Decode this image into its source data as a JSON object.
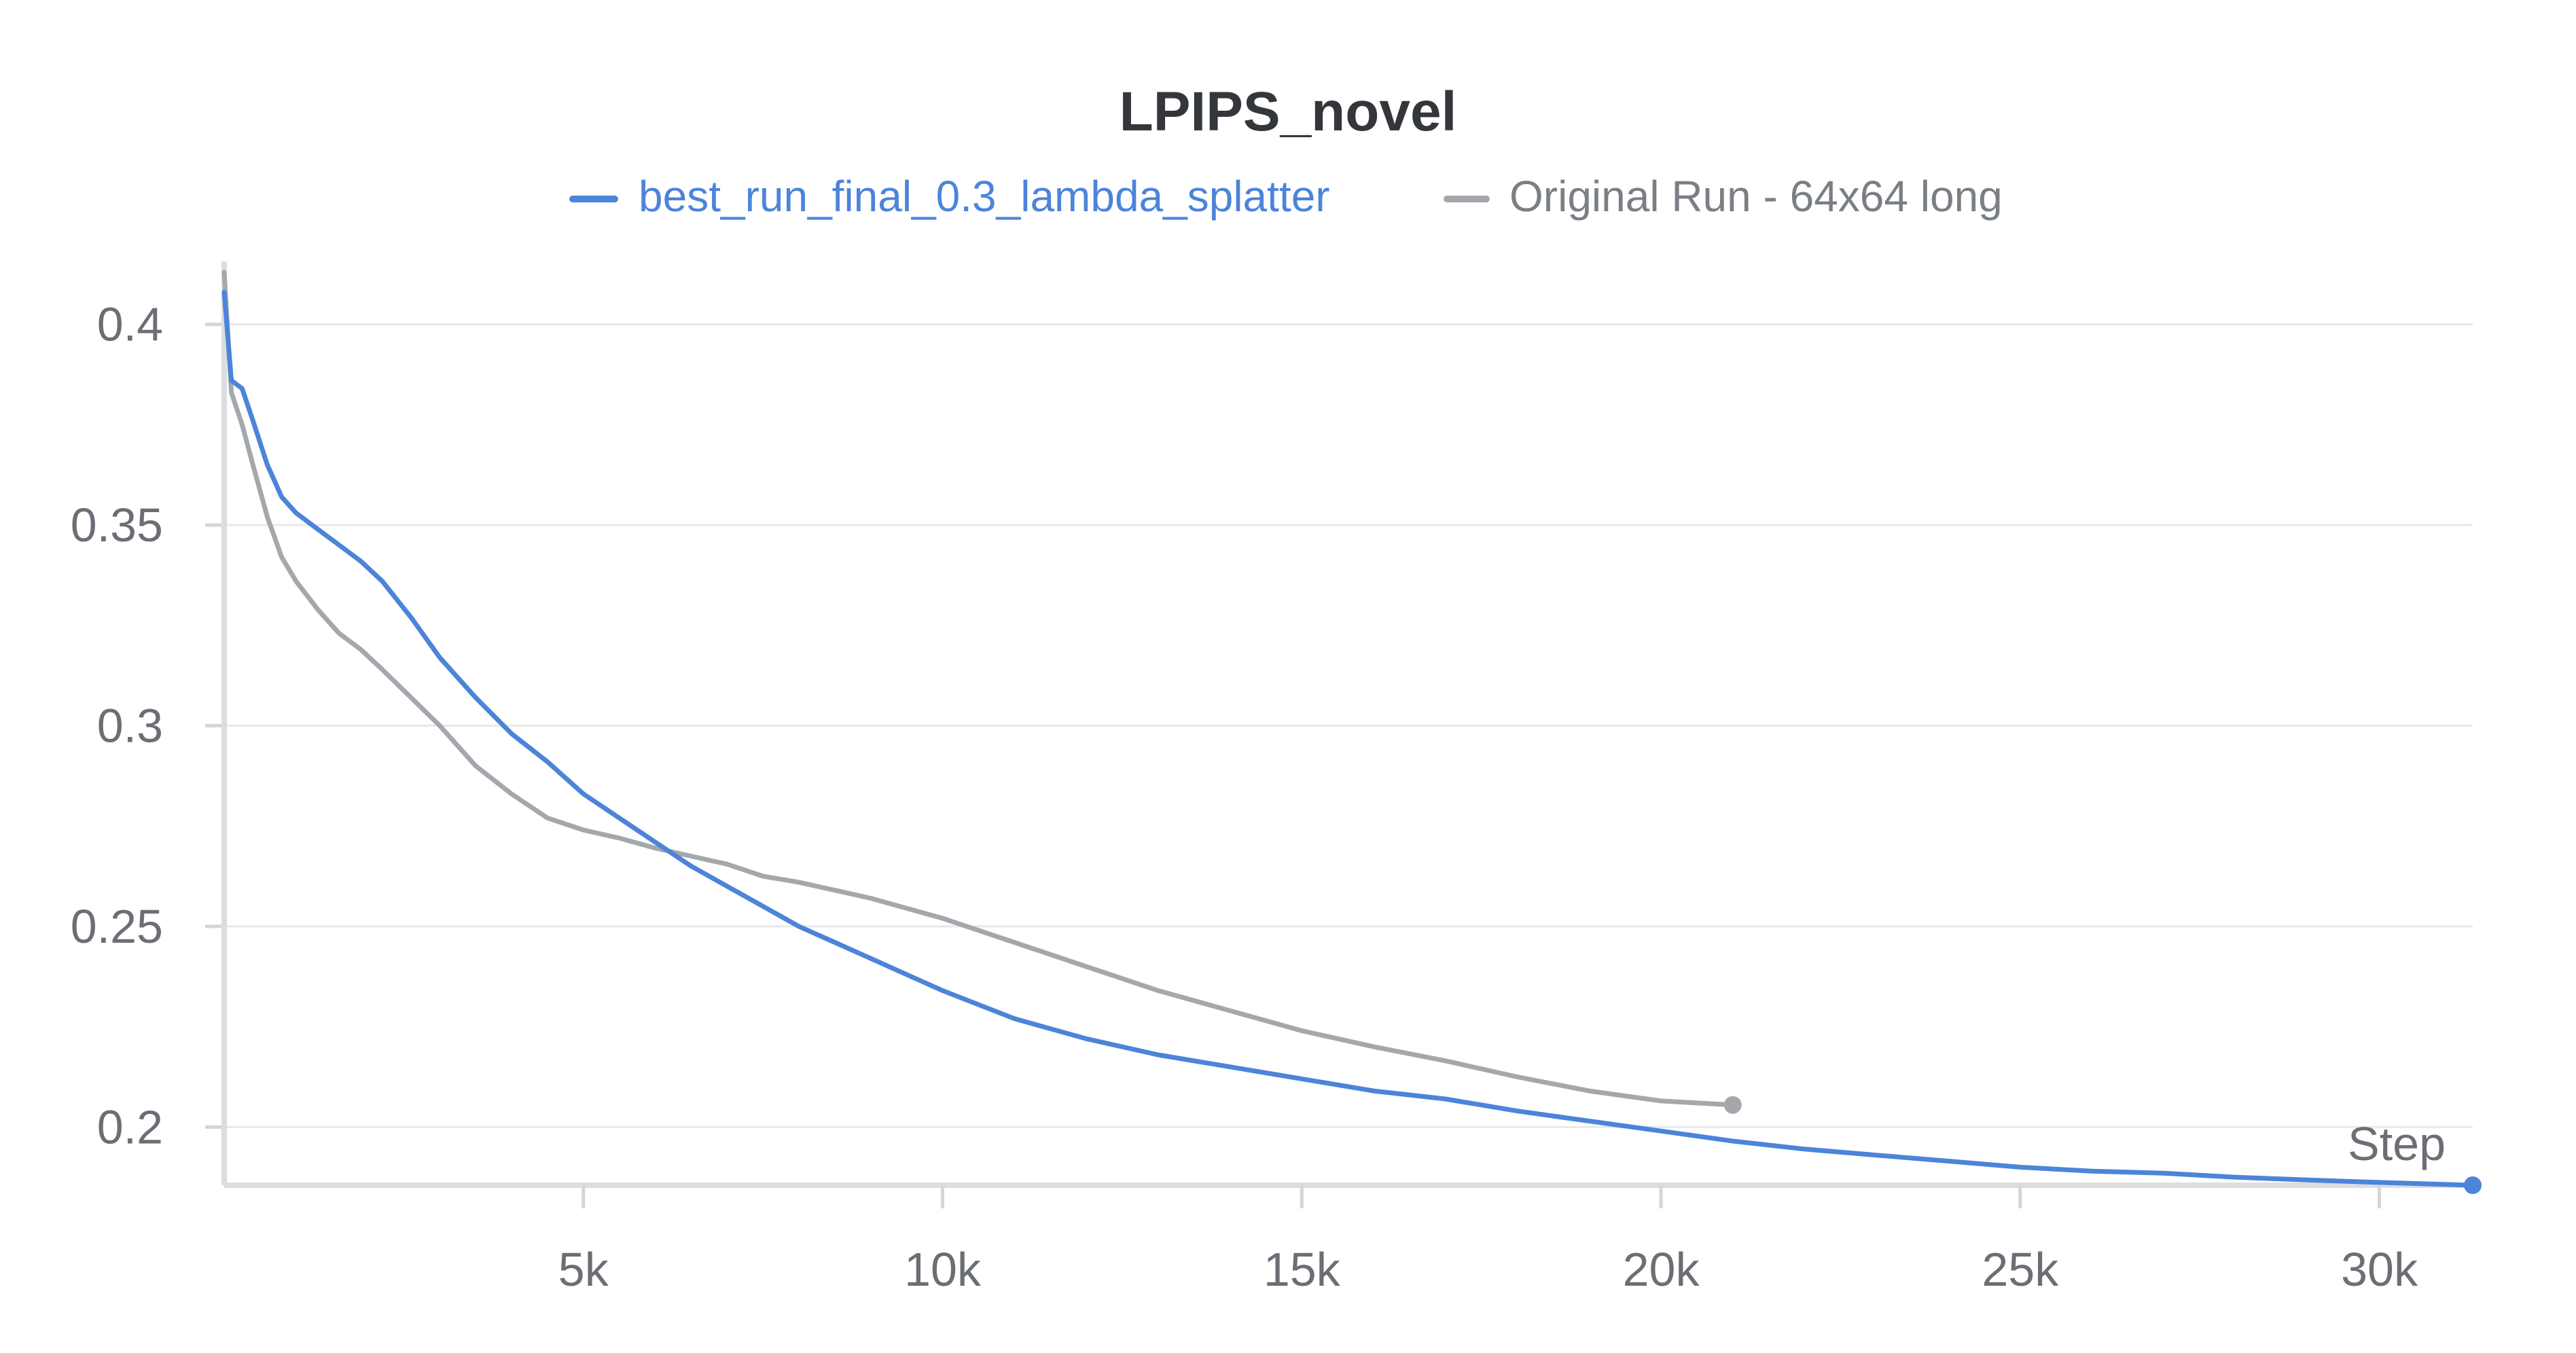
{
  "chart_data": {
    "type": "line",
    "title": "LPIPS_novel",
    "xlabel": "Step",
    "ylabel": "",
    "xlim": [
      0,
      31300
    ],
    "ylim": [
      0.1855,
      0.4165
    ],
    "x_ticks": [
      5000,
      10000,
      15000,
      20000,
      25000,
      30000
    ],
    "x_tick_labels": [
      "5k",
      "10k",
      "15k",
      "20k",
      "25k",
      "30k"
    ],
    "y_ticks": [
      0.2,
      0.25,
      0.3,
      0.35,
      0.4
    ],
    "y_tick_labels": [
      "0.2",
      "0.25",
      "0.3",
      "0.35",
      "0.4"
    ],
    "grid": true,
    "legend_position": "top-center",
    "series": [
      {
        "name": "best_run_final_0.3_lambda_splatter",
        "color": "#4c84d9",
        "x": [
          0,
          100,
          250,
          400,
          600,
          800,
          1000,
          1300,
          1600,
          1900,
          2200,
          2600,
          3000,
          3500,
          4000,
          4500,
          5000,
          5500,
          6000,
          6500,
          7000,
          7500,
          8000,
          8500,
          9000,
          9500,
          10000,
          11000,
          12000,
          13000,
          14000,
          15000,
          16000,
          17000,
          18000,
          19000,
          20000,
          21000,
          22000,
          23000,
          24000,
          25000,
          26000,
          27000,
          28000,
          29000,
          30000,
          31300
        ],
        "y": [
          0.408,
          0.386,
          0.384,
          0.376,
          0.365,
          0.357,
          0.353,
          0.349,
          0.345,
          0.341,
          0.336,
          0.327,
          0.317,
          0.307,
          0.298,
          0.291,
          0.283,
          0.277,
          0.271,
          0.265,
          0.26,
          0.255,
          0.25,
          0.246,
          0.242,
          0.238,
          0.234,
          0.227,
          0.222,
          0.218,
          0.215,
          0.212,
          0.209,
          0.207,
          0.204,
          0.2015,
          0.199,
          0.1965,
          0.1945,
          0.193,
          0.1915,
          0.19,
          0.189,
          0.1885,
          0.1875,
          0.1868,
          0.1862,
          0.1855
        ]
      },
      {
        "name": "Original Run - 64x64 long",
        "color": "#a4a8ad",
        "x": [
          0,
          100,
          250,
          400,
          600,
          800,
          1000,
          1300,
          1600,
          1900,
          2200,
          2600,
          3000,
          3500,
          4000,
          4500,
          5000,
          5500,
          6000,
          6500,
          7000,
          7500,
          8000,
          8500,
          9000,
          9500,
          10000,
          11000,
          12000,
          13000,
          14000,
          15000,
          16000,
          17000,
          18000,
          19000,
          20000,
          21000
        ],
        "y": [
          0.413,
          0.383,
          0.375,
          0.365,
          0.352,
          0.342,
          0.336,
          0.329,
          0.323,
          0.319,
          0.314,
          0.307,
          0.3,
          0.29,
          0.283,
          0.277,
          0.274,
          0.272,
          0.2695,
          0.2675,
          0.2655,
          0.2625,
          0.261,
          0.259,
          0.257,
          0.2545,
          0.252,
          0.246,
          0.24,
          0.234,
          0.229,
          0.224,
          0.22,
          0.2165,
          0.2125,
          0.209,
          0.2065,
          0.2055
        ]
      }
    ]
  }
}
